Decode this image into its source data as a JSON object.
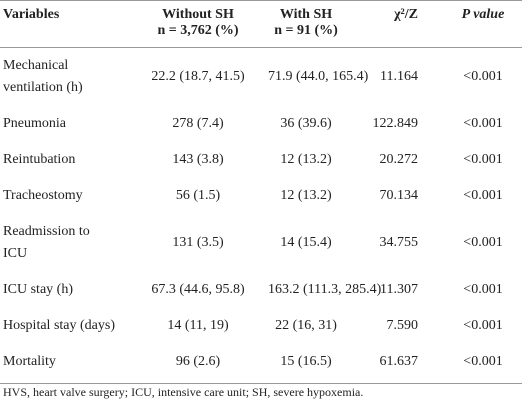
{
  "table": {
    "header": [
      "Variables",
      "Without SH",
      "With SH",
      "χ²/Z",
      "P value"
    ],
    "subheader": [
      "n = 3,762 (%)",
      "n = 91 (%)"
    ],
    "rows": [
      [
        "Mechanical ventilation (h)",
        "22.2 (18.7, 41.5)",
        "71.9 (44.0, 165.4)",
        "11.164",
        "<0.001"
      ],
      [
        "Pneumonia",
        "278 (7.4)",
        "36 (39.6)",
        "122.849",
        "<0.001"
      ],
      [
        "Reintubation",
        "143 (3.8)",
        "12 (13.2)",
        "20.272",
        "<0.001"
      ],
      [
        "Tracheostomy",
        "56 (1.5)",
        "12 (13.2)",
        "70.134",
        "<0.001"
      ],
      [
        "Readmission to ICU",
        "131 (3.5)",
        "14 (15.4)",
        "34.755",
        "<0.001"
      ],
      [
        "ICU stay (h)",
        "67.3 (44.6, 95.8)",
        "163.2 (111.3, 285.4)",
        "11.307",
        "<0.001"
      ],
      [
        "Hospital stay (days)",
        "14 (11, 19)",
        "22 (16, 31)",
        "7.590",
        "<0.001"
      ],
      [
        "Mortality",
        "96 (2.6)",
        "15 (16.5)",
        "61.637",
        "<0.001"
      ]
    ],
    "footnote": "HVS, heart valve surgery; ICU, intensive care unit; SH, severe hypoxemia."
  }
}
